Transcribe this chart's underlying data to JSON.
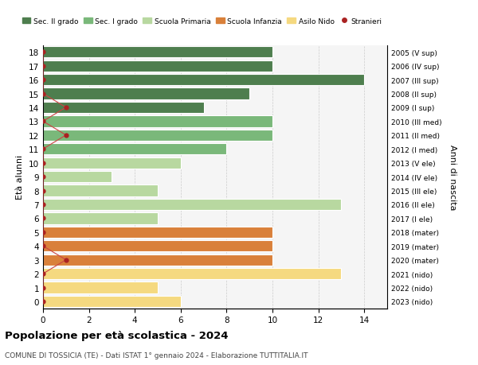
{
  "ages": [
    18,
    17,
    16,
    15,
    14,
    13,
    12,
    11,
    10,
    9,
    8,
    7,
    6,
    5,
    4,
    3,
    2,
    1,
    0
  ],
  "right_labels": [
    "2005 (V sup)",
    "2006 (IV sup)",
    "2007 (III sup)",
    "2008 (II sup)",
    "2009 (I sup)",
    "2010 (III med)",
    "2011 (II med)",
    "2012 (I med)",
    "2013 (V ele)",
    "2014 (IV ele)",
    "2015 (III ele)",
    "2016 (II ele)",
    "2017 (I ele)",
    "2018 (mater)",
    "2019 (mater)",
    "2020 (mater)",
    "2021 (nido)",
    "2022 (nido)",
    "2023 (nido)"
  ],
  "bar_values": [
    10,
    10,
    14,
    9,
    7,
    10,
    10,
    8,
    6,
    3,
    5,
    13,
    5,
    10,
    10,
    10,
    13,
    5,
    6
  ],
  "bar_colors": [
    "#4e7e4e",
    "#4e7e4e",
    "#4e7e4e",
    "#4e7e4e",
    "#4e7e4e",
    "#7ab87a",
    "#7ab87a",
    "#7ab87a",
    "#b8d8a0",
    "#b8d8a0",
    "#b8d8a0",
    "#b8d8a0",
    "#b8d8a0",
    "#d9803a",
    "#d9803a",
    "#d9803a",
    "#f5d980",
    "#f5d980",
    "#f5d980"
  ],
  "stranieri_x": [
    0,
    0,
    0,
    0,
    1,
    0,
    1,
    0,
    0,
    0,
    0,
    0,
    0,
    0,
    0,
    1,
    0,
    0,
    0
  ],
  "legend_labels": [
    "Sec. II grado",
    "Sec. I grado",
    "Scuola Primaria",
    "Scuola Infanzia",
    "Asilo Nido",
    "Stranieri"
  ],
  "legend_colors": [
    "#4e7e4e",
    "#7ab87a",
    "#b8d8a0",
    "#d9803a",
    "#f5d980",
    "#aa2222"
  ],
  "ylabel_left": "Età alunni",
  "ylabel_right": "Anni di nascita",
  "title": "Popolazione per età scolastica - 2024",
  "subtitle": "COMUNE DI TOSSICIA (TE) - Dati ISTAT 1° gennaio 2024 - Elaborazione TUTTITALIA.IT",
  "xlim": [
    0,
    15
  ],
  "background_color": "#ffffff",
  "plot_bg_color": "#f5f5f5",
  "dot_color": "#aa2222",
  "line_color": "#cc4444"
}
